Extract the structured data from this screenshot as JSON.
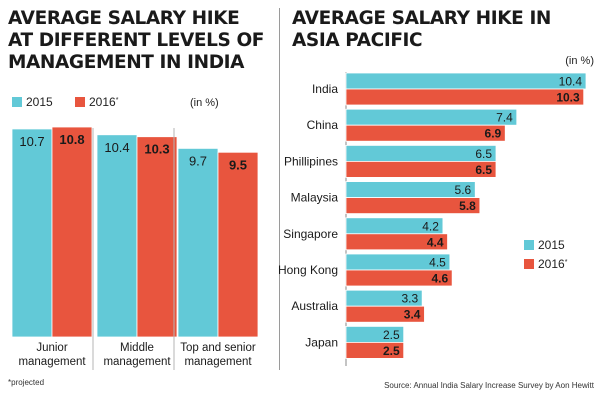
{
  "left_title": "AVERAGE SALARY HIKE AT DIFFERENT LEVELS OF MANAGEMENT IN INDIA",
  "right_title": "AVERAGE SALARY HIKE IN ASIA PACIFIC",
  "footnote": "*projected",
  "source": "Source: Annual India Salary Increase Survey by Aon Hewitt",
  "colors": {
    "2015": "#62c9d7",
    "2016": "#e8553e"
  },
  "chart_data": [
    {
      "type": "bar",
      "orientation": "vertical",
      "title": "AVERAGE SALARY HIKE AT DIFFERENT LEVELS OF MANAGEMENT IN INDIA",
      "unit": "(in %)",
      "categories": [
        [
          "Junior",
          "management"
        ],
        [
          "Middle",
          "management"
        ],
        [
          "Top and senior",
          "management"
        ]
      ],
      "series": [
        {
          "name": "2015",
          "values": [
            10.7,
            10.4,
            9.7
          ]
        },
        {
          "name": "2016",
          "marker": "*",
          "values": [
            10.8,
            10.3,
            9.5
          ]
        }
      ],
      "legend_position": "top-left"
    },
    {
      "type": "bar",
      "orientation": "horizontal",
      "title": "AVERAGE SALARY HIKE IN ASIA PACIFIC",
      "unit": "(in %)",
      "categories": [
        "India",
        "China",
        "Phillipines",
        "Malaysia",
        "Singapore",
        "Hong Kong",
        "Australia",
        "Japan"
      ],
      "series": [
        {
          "name": "2015",
          "values": [
            10.4,
            7.4,
            6.5,
            5.6,
            4.2,
            4.5,
            3.3,
            2.5
          ]
        },
        {
          "name": "2016",
          "marker": "*",
          "values": [
            10.3,
            6.9,
            6.5,
            5.8,
            4.4,
            4.6,
            3.4,
            2.5
          ]
        }
      ],
      "legend_position": "right"
    }
  ]
}
